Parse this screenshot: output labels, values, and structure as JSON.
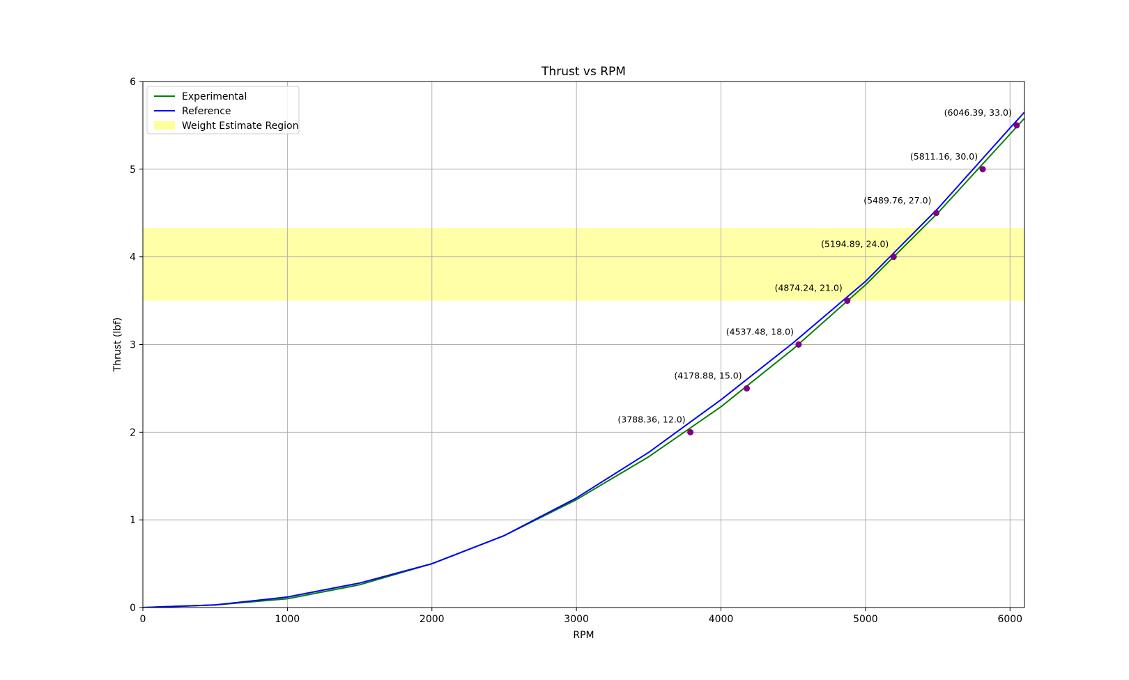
{
  "chart_data": {
    "type": "line",
    "title": "Thrust vs RPM",
    "xlabel": "RPM",
    "ylabel": "Thrust (lbf)",
    "xlim": [
      0,
      6100
    ],
    "ylim": [
      0,
      6
    ],
    "xticks": [
      0,
      1000,
      2000,
      3000,
      4000,
      5000,
      6000
    ],
    "yticks": [
      0,
      1,
      2,
      3,
      4,
      5,
      6
    ],
    "grid": true,
    "legend_position": "top-left",
    "series": [
      {
        "name": "Experimental",
        "color": "#008000",
        "x": [
          0,
          500,
          1000,
          1500,
          2000,
          2500,
          3000,
          3500,
          4000,
          4500,
          5000,
          5500,
          6000,
          6100
        ],
        "y": [
          0.0,
          0.03,
          0.1,
          0.26,
          0.5,
          0.82,
          1.23,
          1.72,
          2.29,
          2.95,
          3.68,
          4.5,
          5.4,
          5.58
        ]
      },
      {
        "name": "Reference",
        "color": "#0000ff",
        "x": [
          0,
          500,
          1000,
          1500,
          2000,
          2500,
          3000,
          3500,
          4000,
          4500,
          5000,
          5500,
          6000,
          6100
        ],
        "y": [
          0.0,
          0.03,
          0.12,
          0.28,
          0.5,
          0.82,
          1.25,
          1.77,
          2.37,
          3.02,
          3.72,
          4.55,
          5.47,
          5.65
        ]
      }
    ],
    "region": {
      "name": "Weight Estimate Region",
      "color": "#ffff99",
      "ymin": 3.5,
      "ymax": 4.33
    },
    "points": {
      "color": "#800080",
      "x": [
        3788.36,
        4178.88,
        4537.48,
        4874.24,
        5194.89,
        5489.76,
        5811.16,
        6046.39
      ],
      "y": [
        2.0,
        2.5,
        3.0,
        3.5,
        4.0,
        4.5,
        5.0,
        5.5
      ],
      "labels": [
        "(3788.36, 12.0)",
        "(4178.88, 15.0)",
        "(4537.48, 18.0)",
        "(4874.24, 21.0)",
        "(5194.89, 24.0)",
        "(5489.76, 27.0)",
        "(5811.16, 30.0)",
        "(6046.39, 33.0)"
      ]
    }
  }
}
